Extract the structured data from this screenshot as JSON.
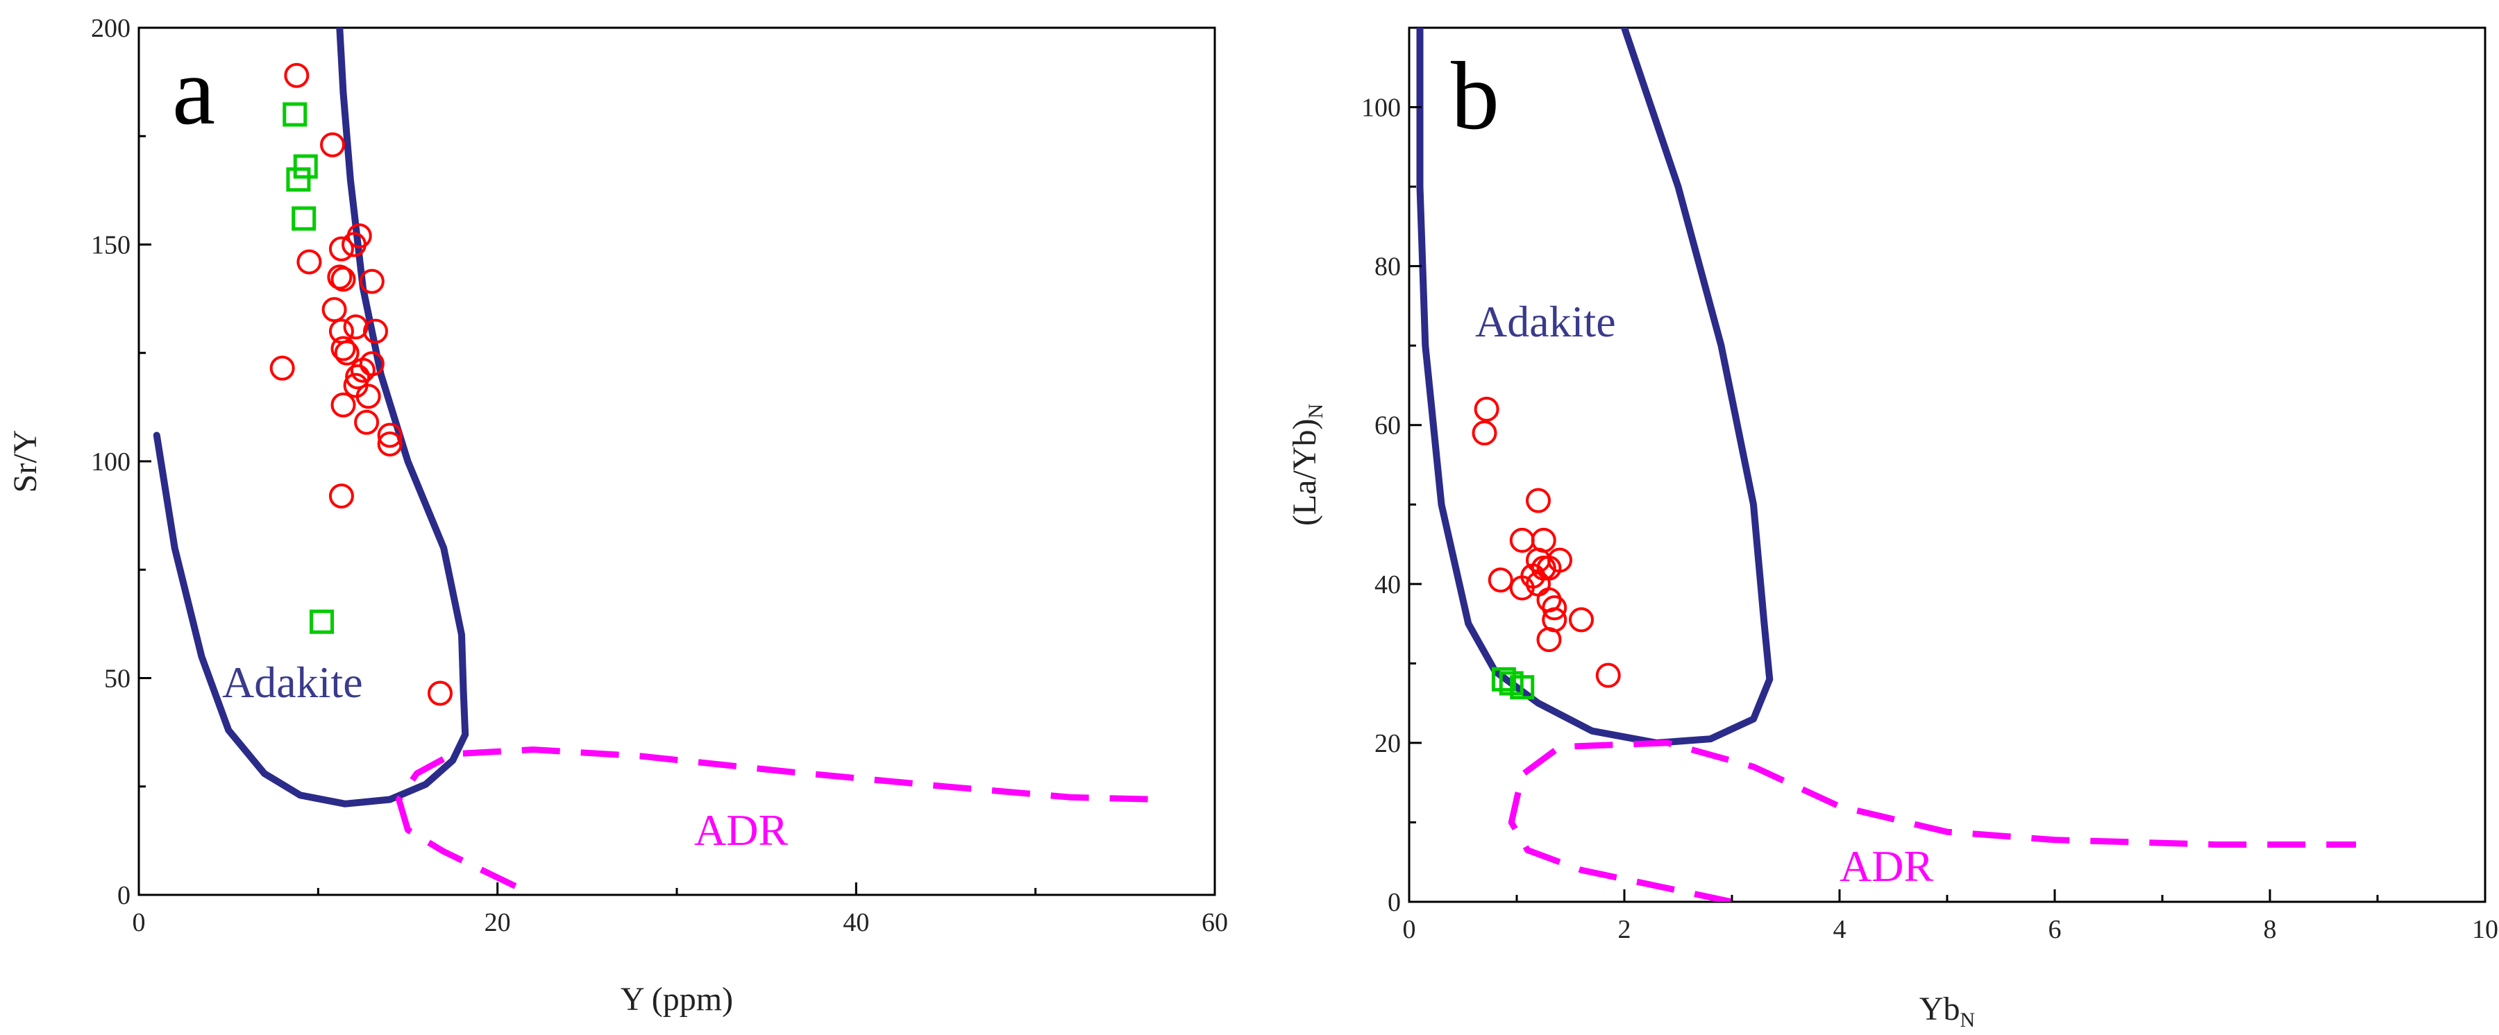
{
  "chart_data": [
    {
      "type": "scatter",
      "panel": "a",
      "xlabel": "Y (ppm)",
      "ylabel": "Sr/Y",
      "xlim": [
        0,
        60
      ],
      "ylim": [
        0,
        200
      ],
      "xticks": [
        0,
        20,
        40,
        60
      ],
      "yticks": [
        0,
        50,
        100,
        150,
        200
      ],
      "regions": [
        {
          "label": "Adakite",
          "style": "solid",
          "color": "#2b2b8a",
          "points": [
            [
              1,
              106
            ],
            [
              2,
              80
            ],
            [
              3.5,
              55
            ],
            [
              5,
              38
            ],
            [
              7,
              28
            ],
            [
              9,
              23
            ],
            [
              11.5,
              21
            ],
            [
              14,
              22
            ],
            [
              16,
              25.5
            ],
            [
              17.5,
              31
            ],
            [
              18.2,
              37
            ],
            [
              18.1,
              47
            ],
            [
              18,
              60
            ],
            [
              17,
              80
            ],
            [
              15,
              100
            ],
            [
              13.5,
              120
            ],
            [
              12.5,
              140
            ],
            [
              11.8,
              165
            ],
            [
              11.4,
              185
            ],
            [
              11.2,
              200
            ]
          ]
        },
        {
          "label": "ADR",
          "style": "dashed",
          "color": "#ff00ff",
          "points": [
            [
              21,
              2
            ],
            [
              19,
              6
            ],
            [
              17,
              10
            ],
            [
              15,
              15
            ],
            [
              14.5,
              22
            ],
            [
              15.5,
              28
            ],
            [
              17.5,
              32.5
            ],
            [
              22,
              33.5
            ],
            [
              28,
              32
            ],
            [
              36,
              28.5
            ],
            [
              45,
              25
            ],
            [
              52,
              22.5
            ],
            [
              57,
              22
            ]
          ]
        }
      ],
      "series": [
        {
          "name": "circles",
          "marker": "circle",
          "color": "#ff0000",
          "points": [
            [
              8.8,
              189
            ],
            [
              10.8,
              173
            ],
            [
              12.3,
              152
            ],
            [
              12,
              150
            ],
            [
              11.3,
              149
            ],
            [
              9.5,
              146
            ],
            [
              11.2,
              142.5
            ],
            [
              11.4,
              142
            ],
            [
              13,
              141.5
            ],
            [
              10.9,
              135
            ],
            [
              11.3,
              130
            ],
            [
              12.1,
              131
            ],
            [
              13.2,
              130
            ],
            [
              11.4,
              126
            ],
            [
              11.6,
              125
            ],
            [
              13,
              122.5
            ],
            [
              8,
              121.5
            ],
            [
              12.2,
              119.5
            ],
            [
              12.5,
              121
            ],
            [
              12.1,
              117.5
            ],
            [
              12.8,
              115
            ],
            [
              11.4,
              113
            ],
            [
              12.7,
              109
            ],
            [
              14,
              106
            ],
            [
              14,
              104
            ],
            [
              11.3,
              92
            ],
            [
              16.8,
              46.5
            ]
          ]
        },
        {
          "name": "squares",
          "marker": "square",
          "color": "#00cc00",
          "points": [
            [
              8.7,
              180
            ],
            [
              9.3,
              168
            ],
            [
              8.9,
              165
            ],
            [
              9.2,
              156
            ],
            [
              10.2,
              63
            ]
          ]
        }
      ]
    },
    {
      "type": "scatter",
      "panel": "b",
      "xlabel": "Yb",
      "xlabel_sub": "N",
      "ylabel": "(La/Yb)",
      "ylabel_sub": "N",
      "xlim": [
        0,
        10
      ],
      "ylim": [
        0,
        110
      ],
      "xticks": [
        0,
        2,
        4,
        6,
        8,
        10
      ],
      "yticks": [
        0,
        20,
        40,
        60,
        80,
        100
      ],
      "regions": [
        {
          "label": "Adakite",
          "style": "solid",
          "color": "#2b2b8a",
          "points": [
            [
              0.1,
              110
            ],
            [
              0.1,
              90
            ],
            [
              0.15,
              70
            ],
            [
              0.3,
              50
            ],
            [
              0.55,
              35
            ],
            [
              0.8,
              29
            ],
            [
              1.2,
              25
            ],
            [
              1.7,
              21.5
            ],
            [
              2.3,
              20
            ],
            [
              2.8,
              20.5
            ],
            [
              3.2,
              23
            ],
            [
              3.35,
              28
            ],
            [
              3.3,
              35
            ],
            [
              3.2,
              50
            ],
            [
              2.9,
              70
            ],
            [
              2.5,
              90
            ],
            [
              2,
              110
            ]
          ]
        },
        {
          "label": "ADR",
          "style": "dashed",
          "color": "#ff00ff",
          "points": [
            [
              3,
              0
            ],
            [
              2.3,
              2
            ],
            [
              1.6,
              4
            ],
            [
              1.1,
              6.5
            ],
            [
              0.95,
              10
            ],
            [
              1.05,
              16
            ],
            [
              1.4,
              19.5
            ],
            [
              2.4,
              20
            ],
            [
              3.2,
              17
            ],
            [
              4,
              12
            ],
            [
              5,
              8.8
            ],
            [
              6,
              7.8
            ],
            [
              7.5,
              7.2
            ],
            [
              8.8,
              7.2
            ]
          ]
        }
      ],
      "series": [
        {
          "name": "circles",
          "marker": "circle",
          "color": "#ff0000",
          "points": [
            [
              0.72,
              62
            ],
            [
              0.7,
              59
            ],
            [
              1.2,
              50.5
            ],
            [
              1.05,
              45.5
            ],
            [
              1.25,
              45.5
            ],
            [
              1.2,
              43
            ],
            [
              1.4,
              43
            ],
            [
              1.25,
              42
            ],
            [
              1.3,
              42
            ],
            [
              1.15,
              41
            ],
            [
              0.85,
              40.5
            ],
            [
              1.05,
              39.5
            ],
            [
              1.2,
              40
            ],
            [
              1.3,
              38
            ],
            [
              1.35,
              37
            ],
            [
              1.35,
              35.5
            ],
            [
              1.6,
              35.5
            ],
            [
              1.3,
              33
            ],
            [
              1.85,
              28.5
            ]
          ]
        },
        {
          "name": "squares",
          "marker": "square",
          "color": "#00cc00",
          "points": [
            [
              0.88,
              28
            ],
            [
              0.95,
              27.5
            ],
            [
              1.05,
              27
            ]
          ]
        }
      ]
    }
  ]
}
